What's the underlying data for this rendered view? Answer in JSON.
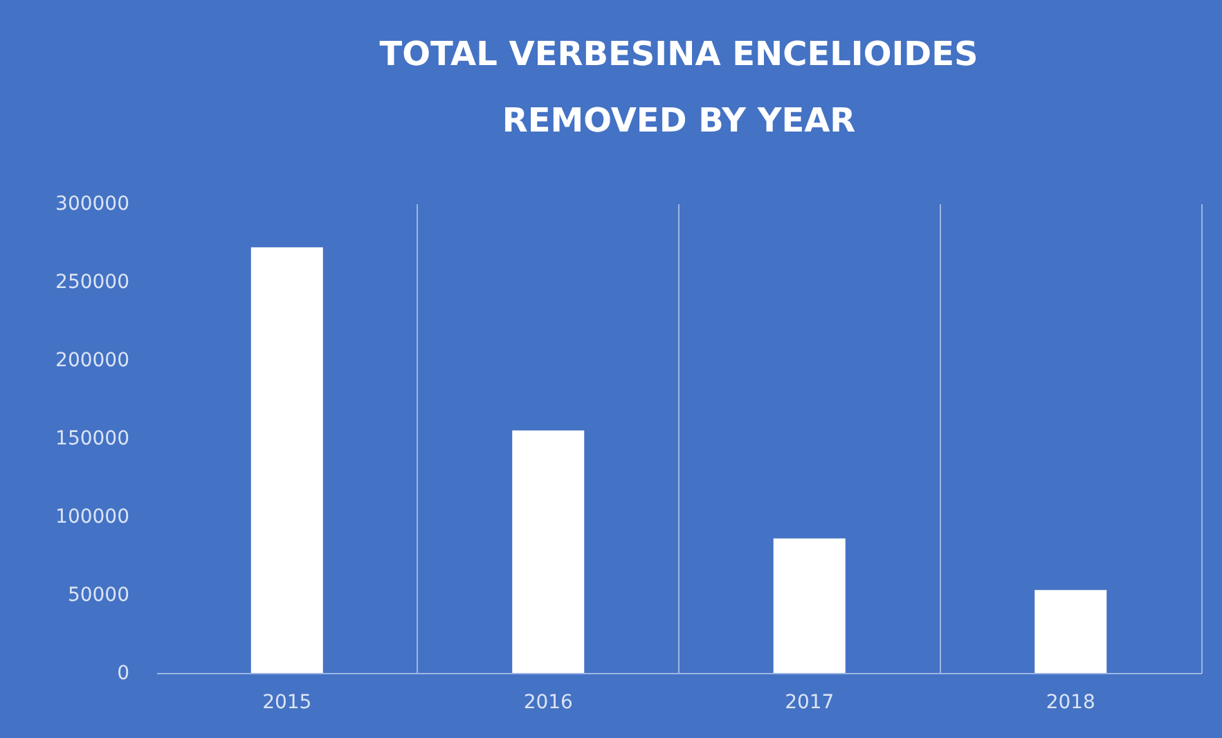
{
  "chart_data": {
    "type": "bar",
    "title": "TOTAL VERBESINA ENCELIOIDES REMOVED BY YEAR",
    "categories": [
      "2015",
      "2016",
      "2017",
      "2018"
    ],
    "values": [
      272000,
      155000,
      86000,
      53000
    ],
    "color": "#ffffff",
    "ylim": [
      0,
      300000
    ],
    "yticks": [
      0,
      50000,
      100000,
      150000,
      200000,
      250000,
      300000
    ],
    "grid": "x"
  }
}
